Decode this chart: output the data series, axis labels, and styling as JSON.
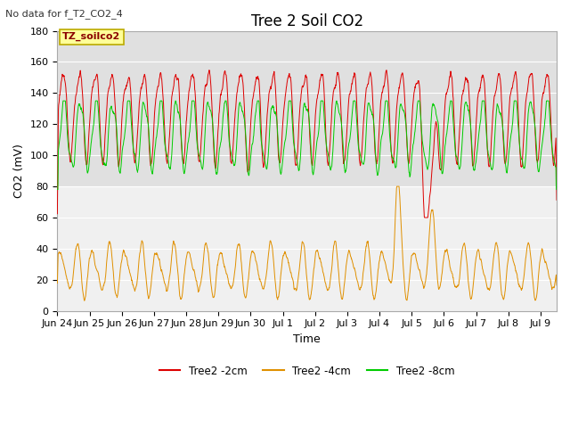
{
  "title": "Tree 2 Soil CO2",
  "top_left_text": "No data for f_T2_CO2_4",
  "xlabel": "Time",
  "ylabel": "CO2 (mV)",
  "ylim": [
    0,
    180
  ],
  "yticks": [
    0,
    20,
    40,
    60,
    80,
    100,
    120,
    140,
    160,
    180
  ],
  "xtick_labels": [
    "Jun 24",
    "Jun 25",
    "Jun 26",
    "Jun 27",
    "Jun 28",
    "Jun 29",
    "Jun 30",
    "Jul 1",
    "Jul 2",
    "Jul 3",
    "Jul 4",
    "Jul 5",
    "Jul 6",
    "Jul 7",
    "Jul 8",
    "Jul 9"
  ],
  "legend_labels": [
    "Tree2 -2cm",
    "Tree2 -4cm",
    "Tree2 -8cm"
  ],
  "legend_colors": [
    "#dd0000",
    "#e09000",
    "#00cc00"
  ],
  "line_colors": [
    "#dd0000",
    "#e09000",
    "#00cc00"
  ],
  "annotation_box_text": "TZ_soilco2",
  "annotation_box_color": "#ffff99",
  "annotation_box_edge": "#bbaa00",
  "bg_color_upper": "#e0e0e0",
  "bg_color_lower": "#f0f0f0",
  "upper_band_ylim": [
    80,
    180
  ],
  "lower_band_ylim": [
    0,
    80
  ],
  "figsize": [
    6.4,
    4.8
  ],
  "dpi": 100,
  "title_fontsize": 12,
  "axis_label_fontsize": 9,
  "tick_fontsize": 8
}
